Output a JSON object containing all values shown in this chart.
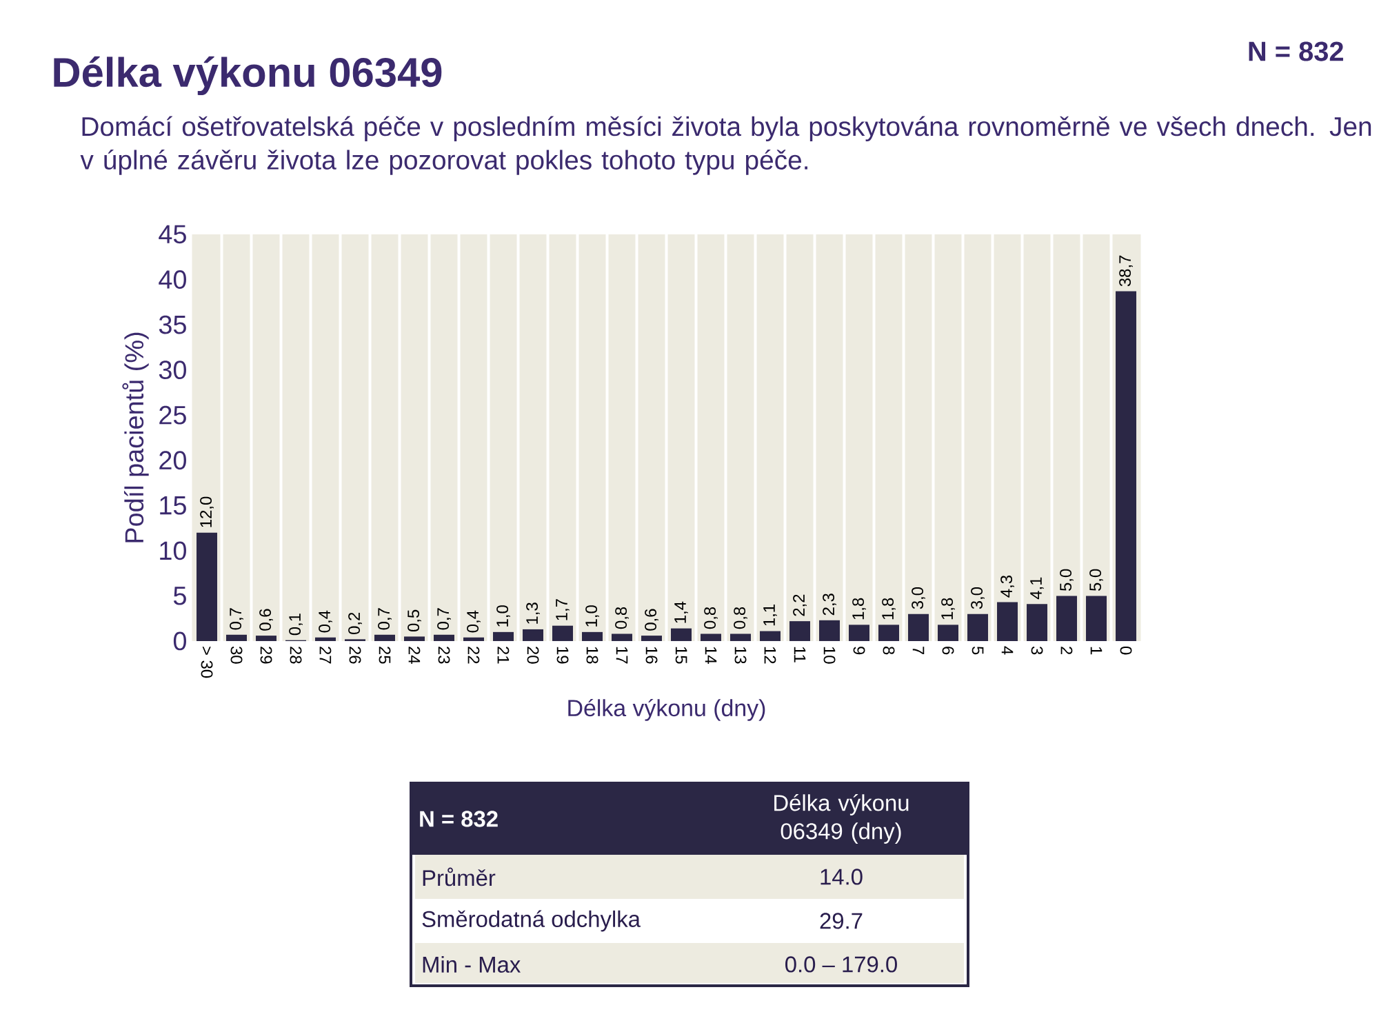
{
  "chart_data": {
    "type": "bar",
    "title": "Délka výkonu 06349",
    "subtitle": "Domácí ošetřovatelská péče v posledním měsíci života byla poskytována rovnoměrně ve všech dnech. Jen v úplné závěru života lze pozorovat pokles tohoto typu péče.",
    "xlabel": "Délka výkonu (dny)",
    "ylabel": "Podíl pacientů (%)",
    "categories": [
      "> 30",
      "30",
      "29",
      "28",
      "27",
      "26",
      "25",
      "24",
      "23",
      "22",
      "21",
      "20",
      "19",
      "18",
      "17",
      "16",
      "15",
      "14",
      "13",
      "12",
      "11",
      "10",
      "9",
      "8",
      "7",
      "6",
      "5",
      "4",
      "3",
      "2",
      "1",
      "0"
    ],
    "values": [
      12.0,
      0.7,
      0.6,
      0.1,
      0.4,
      0.2,
      0.7,
      0.5,
      0.7,
      0.4,
      1.0,
      1.3,
      1.7,
      1.0,
      0.8,
      0.6,
      1.4,
      0.8,
      0.8,
      1.1,
      2.2,
      2.3,
      1.8,
      1.8,
      3.0,
      1.8,
      3.0,
      4.3,
      4.1,
      5.0,
      5.0,
      38.7
    ],
    "value_labels": [
      "12,0",
      "0,7",
      "0,6",
      "0,1",
      "0,4",
      "0,2",
      "0,7",
      "0,5",
      "0,7",
      "0,4",
      "1,0",
      "1,3",
      "1,7",
      "1,0",
      "0,8",
      "0,6",
      "1,4",
      "0,8",
      "0,8",
      "1,1",
      "2,2",
      "2,3",
      "1,8",
      "1,8",
      "3,0",
      "1,8",
      "3,0",
      "4,3",
      "4,1",
      "5,0",
      "5,0",
      "38,7"
    ],
    "color": "#2b2745",
    "ylim": [
      0,
      45
    ],
    "yticks": [
      0,
      5,
      10,
      15,
      20,
      25,
      30,
      35,
      40,
      45
    ],
    "grid": "x",
    "annotations": [
      "N = 832",
      "N = 832",
      "Délka výkonu 06349 (dny)",
      "Průměr",
      "14.0",
      "Směrodatná odchylka",
      "29.7",
      "Min - Max",
      "0.0 – 179.0"
    ]
  }
}
